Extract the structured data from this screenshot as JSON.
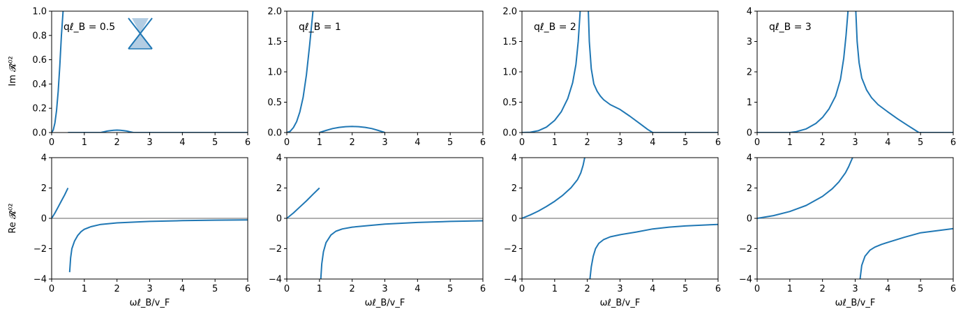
{
  "figure": {
    "xlabel": "ωℓ_B/v_F",
    "row_ylabels": {
      "im": "Im 𝓡̂⁰²",
      "re": "Re 𝓡̂⁰²"
    },
    "colors": {
      "curve": "#1f77b4",
      "zero_line": "#808080",
      "inset_fill": "#b3cde3"
    }
  },
  "chart_data": [
    {
      "type": "line",
      "row": "im",
      "col": 0,
      "panel_label": "qℓ_B = 0.5",
      "inset_icon": "dirac-cone-icon",
      "xlim": [
        0,
        6
      ],
      "ylim": [
        0,
        1.0
      ],
      "xticks": [
        "0",
        "1",
        "2",
        "3",
        "4",
        "5",
        "6"
      ],
      "yticks": [
        "0.0",
        "0.2",
        "0.4",
        "0.6",
        "0.8",
        "1.0"
      ],
      "ytick_values": [
        0,
        0.2,
        0.4,
        0.6,
        0.8,
        1.0
      ],
      "series": [
        {
          "x": [
            0,
            0.05,
            0.1,
            0.15,
            0.2,
            0.25,
            0.3,
            0.35
          ],
          "y": [
            0,
            0.02,
            0.08,
            0.18,
            0.34,
            0.55,
            0.8,
            1.0
          ]
        },
        {
          "x": [
            0.5,
            1.5,
            1.6,
            1.7,
            1.8,
            1.9,
            2.0,
            2.1,
            2.2,
            2.3,
            2.4,
            2.5,
            6.0
          ],
          "y": [
            0,
            0,
            0.006,
            0.012,
            0.016,
            0.019,
            0.02,
            0.019,
            0.016,
            0.012,
            0.006,
            0,
            0
          ]
        }
      ]
    },
    {
      "type": "line",
      "row": "im",
      "col": 1,
      "panel_label": "qℓ_B = 1",
      "xlim": [
        0,
        6
      ],
      "ylim": [
        0,
        2.0
      ],
      "xticks": [
        "0",
        "1",
        "2",
        "3",
        "4",
        "5",
        "6"
      ],
      "yticks": [
        "0.0",
        "0.5",
        "1.0",
        "1.5",
        "2.0"
      ],
      "ytick_values": [
        0,
        0.5,
        1.0,
        1.5,
        2.0
      ],
      "series": [
        {
          "x": [
            0,
            0.1,
            0.2,
            0.3,
            0.4,
            0.5,
            0.6,
            0.7,
            0.8
          ],
          "y": [
            0,
            0.02,
            0.08,
            0.18,
            0.34,
            0.58,
            0.95,
            1.45,
            2.0
          ]
        },
        {
          "x": [
            1.0,
            1.2,
            1.4,
            1.6,
            1.8,
            2.0,
            2.2,
            2.4,
            2.6,
            2.8,
            3.0
          ],
          "y": [
            0,
            0.035,
            0.065,
            0.085,
            0.097,
            0.1,
            0.097,
            0.085,
            0.065,
            0.035,
            0
          ]
        }
      ]
    },
    {
      "type": "line",
      "row": "im",
      "col": 2,
      "panel_label": "qℓ_B = 2",
      "xlim": [
        0,
        6
      ],
      "ylim": [
        0,
        2.0
      ],
      "xticks": [
        "0",
        "1",
        "2",
        "3",
        "4",
        "5",
        "6"
      ],
      "yticks": [
        "0.0",
        "0.5",
        "1.0",
        "1.5",
        "2.0"
      ],
      "ytick_values": [
        0,
        0.5,
        1.0,
        1.5,
        2.0
      ],
      "series": [
        {
          "x": [
            0,
            0.25,
            0.5,
            0.75,
            1.0,
            1.2,
            1.4,
            1.55,
            1.65,
            1.72,
            1.78
          ],
          "y": [
            0,
            0.005,
            0.03,
            0.09,
            0.2,
            0.34,
            0.56,
            0.82,
            1.12,
            1.5,
            2.0
          ]
        },
        {
          "x": [
            2.03,
            2.06,
            2.12,
            2.2,
            2.3,
            2.4,
            2.5,
            2.7,
            3.0,
            3.3,
            3.6,
            3.85,
            4.0,
            6.0
          ],
          "y": [
            2.0,
            1.5,
            1.05,
            0.8,
            0.68,
            0.6,
            0.54,
            0.46,
            0.38,
            0.27,
            0.15,
            0.05,
            0,
            0
          ]
        }
      ]
    },
    {
      "type": "line",
      "row": "im",
      "col": 3,
      "panel_label": "qℓ_B = 3",
      "xlim": [
        0,
        6
      ],
      "ylim": [
        0,
        4
      ],
      "xticks": [
        "0",
        "1",
        "2",
        "3",
        "4",
        "5",
        "6"
      ],
      "yticks": [
        "0",
        "1",
        "2",
        "3",
        "4"
      ],
      "ytick_values": [
        0,
        1,
        2,
        3,
        4
      ],
      "series": [
        {
          "x": [
            0,
            1.0,
            1.2,
            1.5,
            1.8,
            2.0,
            2.2,
            2.4,
            2.55,
            2.65,
            2.72,
            2.78
          ],
          "y": [
            0,
            0,
            0.03,
            0.12,
            0.3,
            0.5,
            0.78,
            1.2,
            1.75,
            2.45,
            3.2,
            4.0
          ]
        },
        {
          "x": [
            3.02,
            3.06,
            3.12,
            3.2,
            3.35,
            3.5,
            3.7,
            4.0,
            4.3,
            4.6,
            4.85,
            4.95,
            6.0
          ],
          "y": [
            4.0,
            3.0,
            2.3,
            1.8,
            1.4,
            1.15,
            0.92,
            0.68,
            0.45,
            0.24,
            0.07,
            0,
            0
          ]
        }
      ]
    },
    {
      "type": "line",
      "row": "re",
      "col": 0,
      "xlim": [
        0,
        6
      ],
      "ylim": [
        -4,
        4
      ],
      "xticks": [
        "0",
        "1",
        "2",
        "3",
        "4",
        "5",
        "6"
      ],
      "yticks": [
        "−4",
        "−2",
        "0",
        "2",
        "4"
      ],
      "ytick_values": [
        -4,
        -2,
        0,
        2,
        4
      ],
      "zero_line": true,
      "series": [
        {
          "x": [
            0,
            0.1,
            0.2,
            0.3,
            0.4,
            0.5
          ],
          "y": [
            0,
            0.35,
            0.75,
            1.15,
            1.55,
            2.0
          ]
        },
        {
          "x": [
            0.55,
            0.58,
            0.62,
            0.7,
            0.8,
            0.9,
            1.0,
            1.2,
            1.5,
            2.0,
            3.0,
            4.0,
            5.0,
            6.0
          ],
          "y": [
            -3.55,
            -2.6,
            -2.0,
            -1.5,
            -1.12,
            -0.88,
            -0.72,
            -0.55,
            -0.4,
            -0.3,
            -0.2,
            -0.15,
            -0.12,
            -0.1
          ]
        }
      ]
    },
    {
      "type": "line",
      "row": "re",
      "col": 1,
      "xlim": [
        0,
        6
      ],
      "ylim": [
        -4,
        4
      ],
      "xticks": [
        "0",
        "1",
        "2",
        "3",
        "4",
        "5",
        "6"
      ],
      "yticks": [
        "−4",
        "−2",
        "0",
        "2",
        "4"
      ],
      "ytick_values": [
        -4,
        -2,
        0,
        2,
        4
      ],
      "zero_line": true,
      "series": [
        {
          "x": [
            0,
            0.2,
            0.4,
            0.6,
            0.8,
            1.0
          ],
          "y": [
            0,
            0.35,
            0.75,
            1.15,
            1.58,
            2.0
          ]
        },
        {
          "x": [
            1.04,
            1.07,
            1.12,
            1.2,
            1.35,
            1.5,
            1.7,
            2.0,
            2.5,
            3.0,
            4.0,
            5.0,
            6.0
          ],
          "y": [
            -4.0,
            -3.0,
            -2.2,
            -1.6,
            -1.1,
            -0.85,
            -0.7,
            -0.58,
            -0.48,
            -0.38,
            -0.27,
            -0.2,
            -0.16
          ]
        }
      ]
    },
    {
      "type": "line",
      "row": "re",
      "col": 2,
      "xlim": [
        0,
        6
      ],
      "ylim": [
        -4,
        4
      ],
      "xticks": [
        "0",
        "1",
        "2",
        "3",
        "4",
        "5",
        "6"
      ],
      "yticks": [
        "−4",
        "−2",
        "0",
        "2",
        "4"
      ],
      "ytick_values": [
        -4,
        -2,
        0,
        2,
        4
      ],
      "zero_line": true,
      "series": [
        {
          "x": [
            0,
            0.25,
            0.5,
            0.75,
            1.0,
            1.25,
            1.5,
            1.7,
            1.8,
            1.87,
            1.92
          ],
          "y": [
            0,
            0.22,
            0.48,
            0.78,
            1.12,
            1.52,
            2.02,
            2.55,
            3.0,
            3.5,
            4.0
          ]
        },
        {
          "x": [
            2.08,
            2.12,
            2.18,
            2.25,
            2.35,
            2.5,
            2.7,
            3.0,
            3.5,
            4.0,
            4.5,
            5.0,
            6.0
          ],
          "y": [
            -4.0,
            -3.2,
            -2.5,
            -2.0,
            -1.65,
            -1.4,
            -1.22,
            -1.08,
            -0.9,
            -0.7,
            -0.58,
            -0.5,
            -0.4
          ]
        }
      ]
    },
    {
      "type": "line",
      "row": "re",
      "col": 3,
      "xlim": [
        0,
        6
      ],
      "ylim": [
        -4,
        4
      ],
      "xticks": [
        "0",
        "1",
        "2",
        "3",
        "4",
        "5",
        "6"
      ],
      "yticks": [
        "−4",
        "−2",
        "0",
        "2",
        "4"
      ],
      "ytick_values": [
        -4,
        -2,
        0,
        2,
        4
      ],
      "zero_line": true,
      "series": [
        {
          "x": [
            0,
            0.5,
            1.0,
            1.5,
            2.0,
            2.3,
            2.5,
            2.7,
            2.8,
            2.87,
            2.92
          ],
          "y": [
            0,
            0.18,
            0.45,
            0.85,
            1.45,
            1.95,
            2.4,
            3.0,
            3.4,
            3.75,
            4.0
          ]
        },
        {
          "x": [
            3.15,
            3.2,
            3.3,
            3.45,
            3.6,
            3.8,
            4.0,
            4.5,
            5.0,
            5.5,
            6.0
          ],
          "y": [
            -4.0,
            -3.1,
            -2.5,
            -2.1,
            -1.9,
            -1.72,
            -1.58,
            -1.25,
            -0.95,
            -0.82,
            -0.68
          ]
        }
      ]
    }
  ]
}
